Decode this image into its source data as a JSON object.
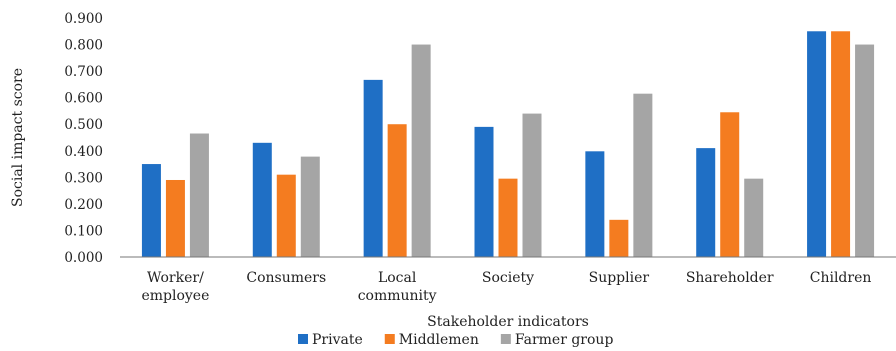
{
  "chart_data": {
    "type": "bar",
    "categories": [
      [
        "Worker/",
        "employee"
      ],
      [
        "Consumers"
      ],
      [
        "Local",
        "community"
      ],
      [
        "Society"
      ],
      [
        "Supplier"
      ],
      [
        "Shareholder"
      ],
      [
        "Children"
      ]
    ],
    "series": [
      {
        "name": "Private",
        "color": "#1f6fc5",
        "values": [
          0.35,
          0.43,
          0.667,
          0.49,
          0.398,
          0.41,
          0.85
        ]
      },
      {
        "name": "Middlemen",
        "color": "#f47c20",
        "values": [
          0.29,
          0.31,
          0.5,
          0.295,
          0.14,
          0.545,
          0.85
        ]
      },
      {
        "name": "Farmer group",
        "color": "#a5a5a5",
        "values": [
          0.465,
          0.378,
          0.8,
          0.54,
          0.615,
          0.295,
          0.8
        ]
      }
    ],
    "ylabel": "Social impact score",
    "xlabel": "Stakeholder indicators",
    "ylim": [
      0,
      0.9
    ],
    "yticks": [
      "0.000",
      "0.100",
      "0.200",
      "0.300",
      "0.400",
      "0.500",
      "0.600",
      "0.700",
      "0.800",
      "0.900"
    ],
    "legend_position": "bottom",
    "grid": false
  }
}
